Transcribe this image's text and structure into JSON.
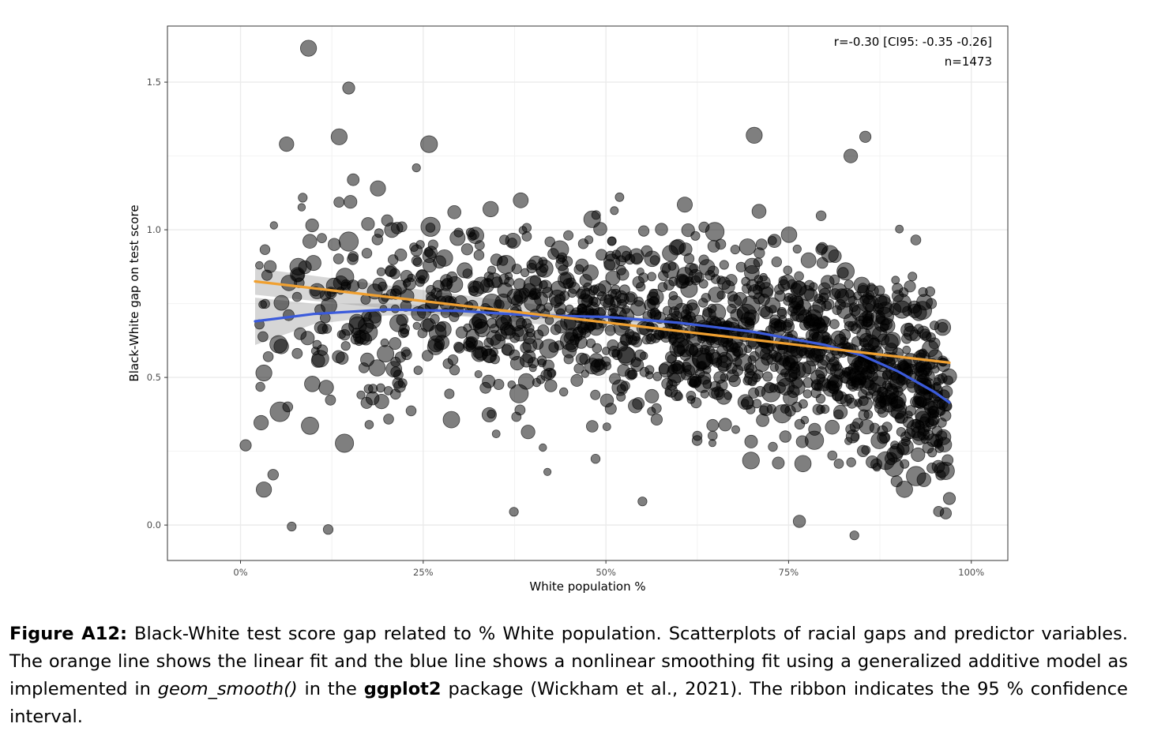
{
  "chart_data": {
    "type": "scatter",
    "xlabel": "White population %",
    "ylabel": "Black-White gap on test score",
    "xlim": [
      -0.1,
      1.05
    ],
    "ylim": [
      -0.12,
      1.69
    ],
    "x_ticks": [
      0,
      0.25,
      0.5,
      0.75,
      1.0
    ],
    "x_tick_labels": [
      "0%",
      "25%",
      "50%",
      "75%",
      "100%"
    ],
    "y_ticks": [
      0.0,
      0.5,
      1.0,
      1.5
    ],
    "y_tick_labels": [
      "0.0",
      "0.5",
      "1.0",
      "1.5"
    ],
    "grid": true,
    "annotation": [
      "r=-0.30 [CI95: -0.35 -0.26]",
      "n=1473"
    ],
    "point_color": "#000000",
    "point_alpha": 0.5,
    "linear_fit": {
      "color": "#f0a030",
      "x": [
        0.02,
        0.97
      ],
      "y": [
        0.825,
        0.55
      ],
      "ci_lower": [
        0.78,
        0.535
      ],
      "ci_upper": [
        0.87,
        0.565
      ]
    },
    "smooth_fit": {
      "color": "#3b5bdb",
      "x": [
        0.02,
        0.1,
        0.2,
        0.3,
        0.4,
        0.5,
        0.6,
        0.7,
        0.8,
        0.85,
        0.9,
        0.95,
        0.97
      ],
      "y": [
        0.69,
        0.715,
        0.73,
        0.725,
        0.71,
        0.705,
        0.685,
        0.655,
        0.61,
        0.575,
        0.52,
        0.45,
        0.415
      ],
      "ci_lower": [
        0.61,
        0.68,
        0.71,
        0.71,
        0.698,
        0.695,
        0.675,
        0.645,
        0.595,
        0.558,
        0.5,
        0.42,
        0.38
      ],
      "ci_upper": [
        0.77,
        0.75,
        0.75,
        0.74,
        0.722,
        0.715,
        0.695,
        0.665,
        0.625,
        0.592,
        0.54,
        0.48,
        0.45
      ]
    },
    "labeled_points": [
      {
        "x": 0.093,
        "y": 1.615,
        "size": 1.6
      },
      {
        "x": 0.148,
        "y": 1.48,
        "size": 1.1
      },
      {
        "x": 0.063,
        "y": 1.29,
        "size": 1.4
      },
      {
        "x": 0.135,
        "y": 1.315,
        "size": 1.6
      },
      {
        "x": 0.258,
        "y": 1.29,
        "size": 1.7
      },
      {
        "x": 0.703,
        "y": 1.32,
        "size": 1.6
      },
      {
        "x": 0.835,
        "y": 1.25,
        "size": 1.3
      },
      {
        "x": 0.188,
        "y": 1.14,
        "size": 1.5
      },
      {
        "x": 0.26,
        "y": 1.01,
        "size": 2.0
      },
      {
        "x": 0.148,
        "y": 0.96,
        "size": 2.0
      },
      {
        "x": 0.079,
        "y": 0.875,
        "size": 1.7
      },
      {
        "x": 0.143,
        "y": 0.84,
        "size": 1.8
      },
      {
        "x": 0.098,
        "y": 1.015,
        "size": 1.2
      },
      {
        "x": 0.032,
        "y": 0.515,
        "size": 1.6
      },
      {
        "x": 0.032,
        "y": 0.12,
        "size": 1.5
      },
      {
        "x": 0.007,
        "y": 0.27,
        "size": 1.0
      },
      {
        "x": 0.12,
        "y": -0.015,
        "size": 0.8
      },
      {
        "x": 0.07,
        "y": -0.005,
        "size": 0.7
      },
      {
        "x": 0.55,
        "y": 0.08,
        "size": 0.7
      },
      {
        "x": 0.84,
        "y": -0.035,
        "size": 0.7
      },
      {
        "x": 0.97,
        "y": 0.09,
        "size": 1.1
      },
      {
        "x": 0.965,
        "y": 0.04,
        "size": 1.0
      },
      {
        "x": 0.855,
        "y": 1.315,
        "size": 1.0
      },
      {
        "x": 0.374,
        "y": 0.045,
        "size": 0.7
      },
      {
        "x": 0.42,
        "y": 0.18,
        "size": 0.5
      }
    ],
    "generated_cloud": {
      "n_total": 1473,
      "seed": 12345
    }
  },
  "caption": {
    "label": "Figure A12:",
    "part1": " Black-White test score gap related to % White population. Scatterplots of racial gaps and predictor variables. The orange line shows the linear fit and the blue line shows a nonlinear smoothing fit using a generalized additive model as implemented in ",
    "code": "geom_smooth()",
    "part2": " in the ",
    "package": "ggplot2",
    "part3": " package (Wickham et al., 2021). The ribbon indicates the 95 % confidence interval."
  }
}
